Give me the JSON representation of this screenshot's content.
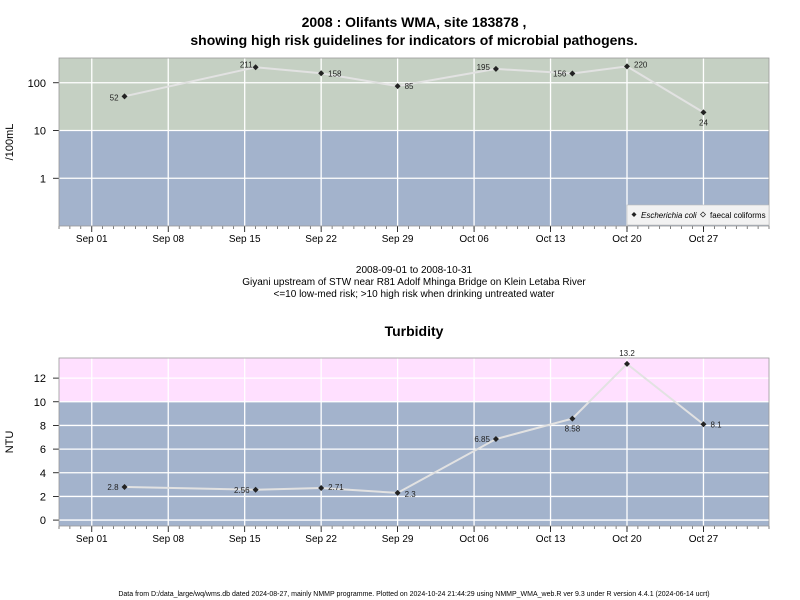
{
  "chart_data": [
    {
      "type": "line",
      "title": "2008 : Olifants WMA, site 183878 ,",
      "subtitle": "showing high risk guidelines for indicators of microbial pathogens.",
      "ylabel": "/100mL",
      "y_scale": "log",
      "ylim": [
        0.1,
        330
      ],
      "y_ticks": [
        1,
        10,
        100
      ],
      "y_tick_labels": [
        "1",
        "10",
        "100"
      ],
      "x_ticks": [
        "Sep 01",
        "Sep 08",
        "Sep 15",
        "Sep 22",
        "Sep 29",
        "Oct 06",
        "Oct 13",
        "Oct 20",
        "Oct 27"
      ],
      "guideline": {
        "value": 10,
        "below_color": "#a3b3cc",
        "above_color": "#c5d0c3"
      },
      "legend": {
        "position": "bottom-right",
        "entries": [
          "Escherichia coli",
          "faecal coliforms"
        ]
      },
      "series": [
        {
          "name": "Escherichia coli",
          "x": [
            "2008-09-04",
            "2008-09-16",
            "2008-09-22",
            "2008-09-29",
            "2008-10-08",
            "2008-10-15",
            "2008-10-20",
            "2008-10-27"
          ],
          "values": [
            52,
            211,
            158,
            85,
            195,
            156,
            220,
            24
          ],
          "labels": [
            "52",
            "211",
            "158",
            "85",
            "195",
            "156",
            "220",
            "24"
          ]
        }
      ],
      "caption": [
        "2008-09-01 to 2008-10-31",
        "Giyani upstream of STW near R81 Adolf Mhinga Bridge on Klein Letaba River",
        "<=10 low-med risk; >10 high risk when drinking untreated water"
      ]
    },
    {
      "type": "line",
      "title": "Turbidity",
      "ylabel": "NTU",
      "ylim": [
        -0.5,
        13.7
      ],
      "y_ticks": [
        0,
        2,
        4,
        6,
        8,
        10,
        12
      ],
      "y_tick_labels": [
        "0",
        "2",
        "4",
        "6",
        "8",
        "10",
        "12"
      ],
      "x_ticks": [
        "Sep 01",
        "Sep 08",
        "Sep 15",
        "Sep 22",
        "Sep 29",
        "Oct 06",
        "Oct 13",
        "Oct 20",
        "Oct 27"
      ],
      "guideline": {
        "value": 10,
        "below_color": "#a3b3cc",
        "above_color": "#ffe0ff"
      },
      "series": [
        {
          "x": [
            "2008-09-04",
            "2008-09-16",
            "2008-09-22",
            "2008-09-29",
            "2008-10-08",
            "2008-10-15",
            "2008-10-20",
            "2008-10-27"
          ],
          "values": [
            2.8,
            2.56,
            2.71,
            2.3,
            6.85,
            8.58,
            13.2,
            8.1
          ],
          "labels": [
            "2.8",
            "2.56",
            "2.71",
            "2.3",
            "6.85",
            "8.58",
            "13.2",
            "8.1"
          ]
        }
      ]
    }
  ],
  "footer": "Data from D:/data_large/wq/wms.db dated 2024-08-27, mainly NMMP programme. Plotted on 2024-10-24 21:44:29 using NMMP_WMA_web.R ver 9.3 under R version 4.4.1 (2024-06-14 ucrt)"
}
